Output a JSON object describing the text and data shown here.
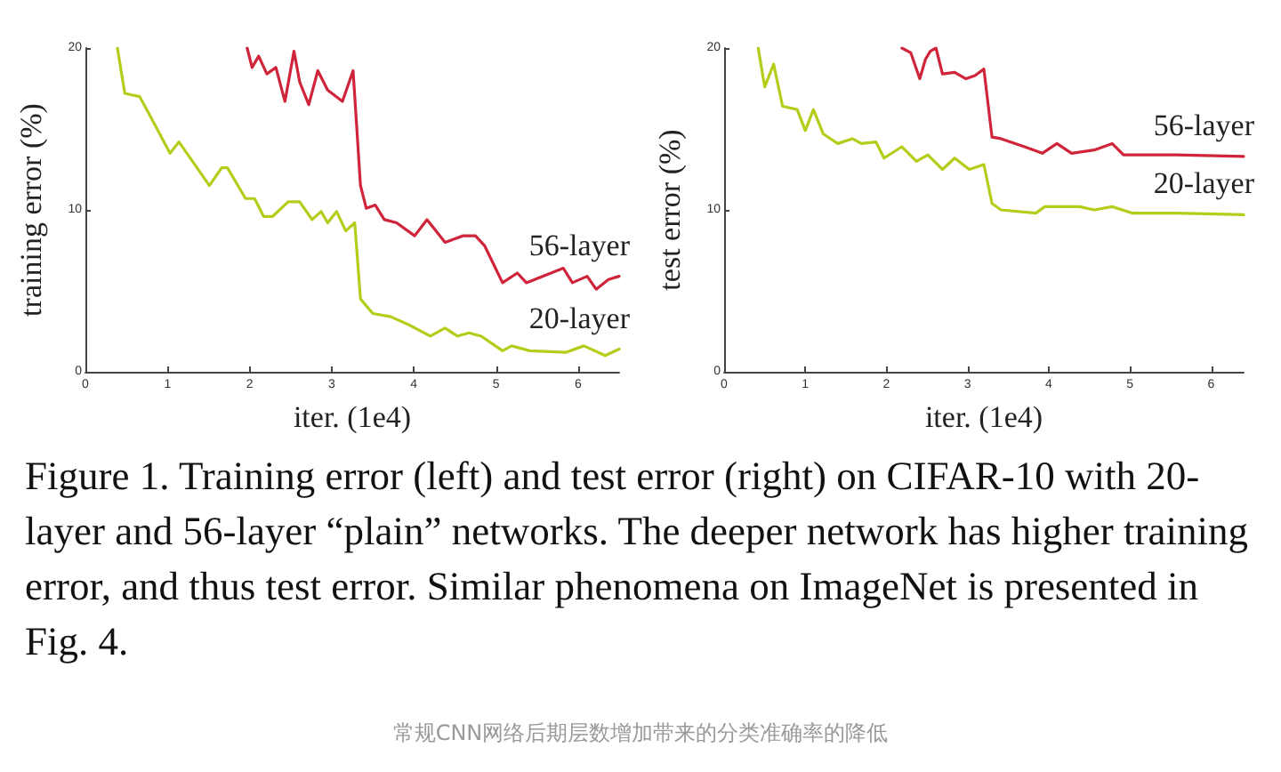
{
  "chart_data": [
    {
      "type": "line",
      "xlabel": "iter. (1e4)",
      "ylabel": "training error (%)",
      "xlim": [
        0,
        6.5
      ],
      "xticks": [
        0,
        1,
        2,
        3,
        4,
        5,
        6
      ],
      "ylim": [
        0,
        20
      ],
      "yticks": [
        0,
        10,
        20
      ],
      "grid": false,
      "legend": false,
      "marker": "none",
      "line_style": "solid",
      "series": [
        {
          "name": "56-layer",
          "color": "#d0243a",
          "x": [
            1.97,
            2.03,
            2.11,
            2.21,
            2.32,
            2.43,
            2.54,
            2.61,
            2.72,
            2.83,
            2.95,
            3.13,
            3.26,
            3.35,
            3.42,
            3.53,
            3.64,
            3.79,
            4.01,
            4.16,
            4.38,
            4.6,
            4.75,
            4.86,
            5.08,
            5.26,
            5.37,
            5.82,
            5.93,
            6.11,
            6.22,
            6.37,
            6.5
          ],
          "values": [
            20,
            18.8,
            19.5,
            18.4,
            18.8,
            16.7,
            19.8,
            17.9,
            16.5,
            18.6,
            17.4,
            16.7,
            18.6,
            11.5,
            10.1,
            10.3,
            9.4,
            9.2,
            8.4,
            9.4,
            8.0,
            8.4,
            8.4,
            7.8,
            5.5,
            6.1,
            5.5,
            6.4,
            5.5,
            5.9,
            5.1,
            5.7,
            5.9
          ]
        },
        {
          "name": "20-layer",
          "color": "#b5cc1a",
          "x": [
            0.39,
            0.48,
            0.66,
            0.81,
            1.03,
            1.14,
            1.51,
            1.66,
            1.73,
            1.95,
            2.06,
            2.17,
            2.28,
            2.47,
            2.61,
            2.76,
            2.87,
            2.95,
            3.06,
            3.17,
            3.28,
            3.35,
            3.5,
            3.72,
            3.94,
            4.2,
            4.38,
            4.53,
            4.67,
            4.82,
            5.08,
            5.19,
            5.41,
            5.85,
            6.07,
            6.33,
            6.5
          ],
          "values": [
            20,
            17.2,
            17.0,
            15.6,
            13.5,
            14.2,
            11.5,
            12.6,
            12.6,
            10.7,
            10.7,
            9.6,
            9.6,
            10.5,
            10.5,
            9.4,
            9.9,
            9.2,
            9.9,
            8.7,
            9.2,
            4.5,
            3.6,
            3.4,
            2.9,
            2.2,
            2.7,
            2.2,
            2.4,
            2.2,
            1.3,
            1.6,
            1.3,
            1.2,
            1.6,
            1.0,
            1.4
          ]
        }
      ],
      "annotations": [
        "Figure 1. Training error (left) and test error (right) on CIFAR-10 with 20-layer and 56-layer “plain” networks. The deeper network has higher training error, and thus test error. Similar phenomena on ImageNet is presented in Fig. 4.",
        "常规CNN网络后期层数增加带来的分类准确率的降低"
      ]
    },
    {
      "type": "line",
      "xlabel": "iter. (1e4)",
      "ylabel": "test error (%)",
      "xlim": [
        0,
        6.4
      ],
      "xticks": [
        0,
        1,
        2,
        3,
        4,
        5,
        6
      ],
      "ylim": [
        0,
        20
      ],
      "yticks": [
        0,
        10,
        20
      ],
      "grid": false,
      "legend": false,
      "marker": "none",
      "line_style": "solid",
      "series": [
        {
          "name": "56-layer",
          "color": "#d0243a",
          "x": [
            2.19,
            2.3,
            2.41,
            2.48,
            2.54,
            2.61,
            2.69,
            2.84,
            2.98,
            3.09,
            3.2,
            3.3,
            3.41,
            3.7,
            3.92,
            4.1,
            4.28,
            4.56,
            4.78,
            4.92,
            5.57,
            6.4
          ],
          "values": [
            20,
            19.7,
            18.1,
            19.3,
            19.8,
            20,
            18.4,
            18.5,
            18.1,
            18.3,
            18.7,
            14.5,
            14.4,
            13.9,
            13.5,
            14.1,
            13.5,
            13.7,
            14.1,
            13.4,
            13.4,
            13.3
          ]
        },
        {
          "name": "20-layer",
          "color": "#b5cc1a",
          "x": [
            0.42,
            0.5,
            0.61,
            0.72,
            0.9,
            1.0,
            1.1,
            1.22,
            1.4,
            1.58,
            1.69,
            1.87,
            1.97,
            2.19,
            2.37,
            2.51,
            2.69,
            2.84,
            3.02,
            3.2,
            3.3,
            3.41,
            3.84,
            3.95,
            4.38,
            4.56,
            4.78,
            5.03,
            5.57,
            6.4
          ],
          "values": [
            20,
            17.6,
            19.0,
            16.4,
            16.2,
            14.9,
            16.2,
            14.7,
            14.1,
            14.4,
            14.1,
            14.2,
            13.2,
            13.9,
            13.0,
            13.4,
            12.5,
            13.2,
            12.5,
            12.8,
            10.4,
            10.0,
            9.8,
            10.2,
            10.2,
            10.0,
            10.2,
            9.8,
            9.8,
            9.7
          ]
        }
      ]
    }
  ]
}
